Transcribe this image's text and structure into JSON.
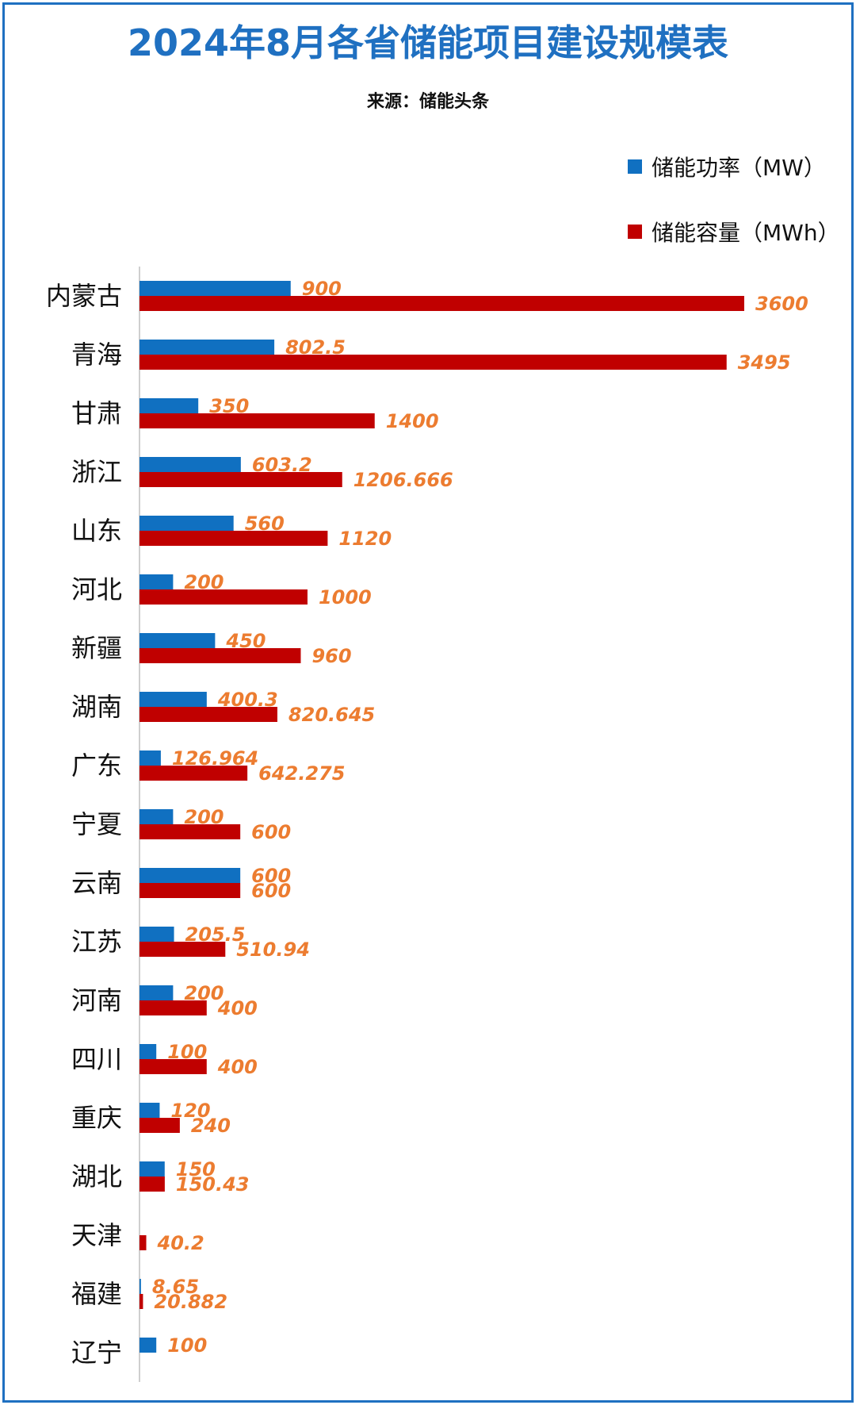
{
  "title": "2024年8月各省储能项目建设规模表",
  "subtitle": "来源：储能头条",
  "colors": {
    "power": "#1070c1",
    "capacity": "#c00000",
    "value_label": "#ec7c30",
    "frame": "#1f70c1",
    "axis": "#cfcfcf"
  },
  "legend": [
    {
      "label": "储能功率（MW）",
      "color": "#1070c1"
    },
    {
      "label": "储能容量（MWh）",
      "color": "#c00000"
    }
  ],
  "chart_data": {
    "type": "bar",
    "orientation": "horizontal",
    "categories": [
      "内蒙古",
      "青海",
      "甘肃",
      "浙江",
      "山东",
      "河北",
      "新疆",
      "湖南",
      "广东",
      "宁夏",
      "云南",
      "江苏",
      "河南",
      "四川",
      "重庆",
      "湖北",
      "天津",
      "福建",
      "辽宁"
    ],
    "series": [
      {
        "name": "储能功率（MW）",
        "values": [
          900,
          802.5,
          350,
          603.2,
          560,
          200,
          450,
          400.3,
          126.964,
          200,
          600,
          205.5,
          200,
          100,
          120,
          150,
          null,
          8.65,
          100
        ]
      },
      {
        "name": "储能容量（MWh）",
        "values": [
          3600,
          3495,
          1400,
          1206.666,
          1120,
          1000,
          960,
          820.645,
          642.275,
          600,
          600,
          510.94,
          400,
          400,
          240,
          150.43,
          40.2,
          20.882,
          null
        ]
      }
    ],
    "data_labels": {
      "power": [
        "900",
        "802.5",
        "350",
        "603.2",
        "560",
        "200",
        "450",
        "400.3",
        "126.964",
        "200",
        "600",
        "205.5",
        "200",
        "100",
        "120",
        "150",
        "",
        "8.65",
        "100"
      ],
      "capacity": [
        "3600",
        "3495",
        "1400",
        "1206.666",
        "1120",
        "1000",
        "960",
        "820.645",
        "642.275",
        "600",
        "600",
        "510.94",
        "400",
        "400",
        "240",
        "150.43",
        "40.2",
        "20.882",
        ""
      ]
    },
    "xlim": [
      0,
      3600
    ],
    "legend_position": "top-right",
    "grid": false
  }
}
